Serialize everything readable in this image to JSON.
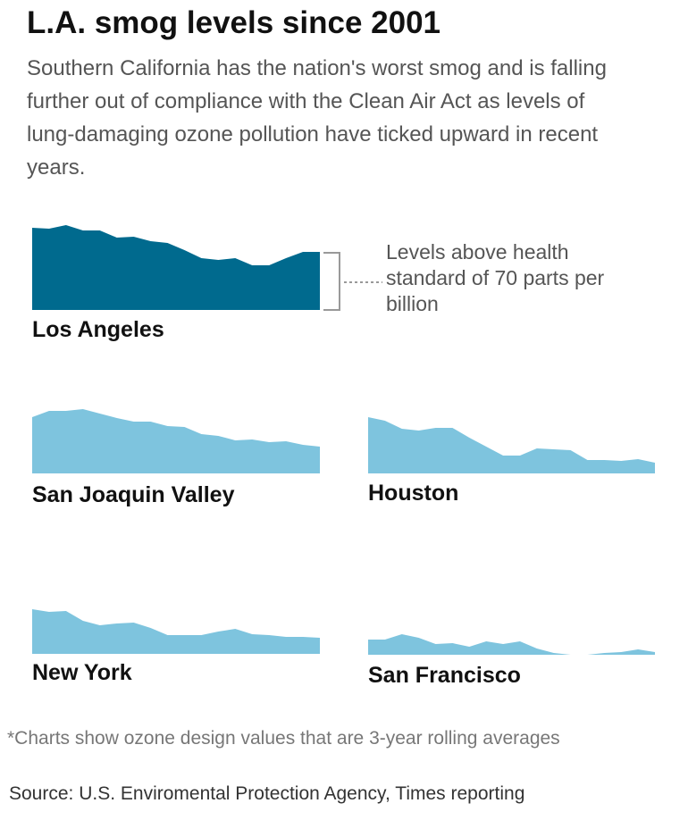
{
  "title": "L.A. smog levels since 2001",
  "subtitle": "Southern California has the nation's worst smog and is falling further out of compliance with the Clean Air Act as levels of lung-damaging ozone pollution have ticked upward in recent years.",
  "note": "*Charts show ozone design values that are 3-year rolling averages",
  "source": "Source: U.S. Enviromental Protection Agency, Times reporting",
  "chart_data": [
    {
      "type": "area",
      "title": "Los Angeles",
      "color": "#006a8e",
      "ylim": [
        0,
        50
      ],
      "annotation": "Levels above health standard of 70 parts per billion",
      "values": [
        46,
        45.5,
        47.5,
        44.5,
        44.5,
        40.5,
        41,
        38.5,
        37.5,
        33.5,
        29,
        28,
        29,
        25,
        25,
        29,
        32.5,
        32.5
      ]
    },
    {
      "type": "area",
      "title": "San Joaquin Valley",
      "color": "#7ec4de",
      "ylim": [
        0,
        50
      ],
      "values": [
        31.5,
        35,
        35,
        36,
        33.5,
        31,
        29,
        29,
        26.5,
        26,
        22,
        21,
        18.5,
        19,
        17.5,
        18,
        16,
        15
      ]
    },
    {
      "type": "area",
      "title": "Houston",
      "color": "#7ec4de",
      "ylim": [
        0,
        50
      ],
      "values": [
        31.5,
        29.5,
        25,
        24,
        25.5,
        25.5,
        20,
        15,
        10,
        10,
        14,
        13.5,
        13,
        7.5,
        7.5,
        7,
        8,
        6
      ]
    },
    {
      "type": "area",
      "title": "New York",
      "color": "#7ec4de",
      "ylim": [
        0,
        50
      ],
      "values": [
        25,
        23.5,
        24,
        18.5,
        16,
        17,
        17.5,
        14.5,
        10.5,
        10.5,
        10.5,
        12.5,
        14,
        11,
        10.5,
        9.5,
        9.5,
        9
      ]
    },
    {
      "type": "area",
      "title": "San Francisco",
      "color": "#7ec4de",
      "ylim": [
        0,
        50
      ],
      "values": [
        8.5,
        8.5,
        11.5,
        9.5,
        6,
        6.5,
        4.5,
        7.5,
        6,
        7.5,
        3.5,
        1,
        0,
        0,
        1,
        1.5,
        3,
        1.5
      ]
    }
  ]
}
